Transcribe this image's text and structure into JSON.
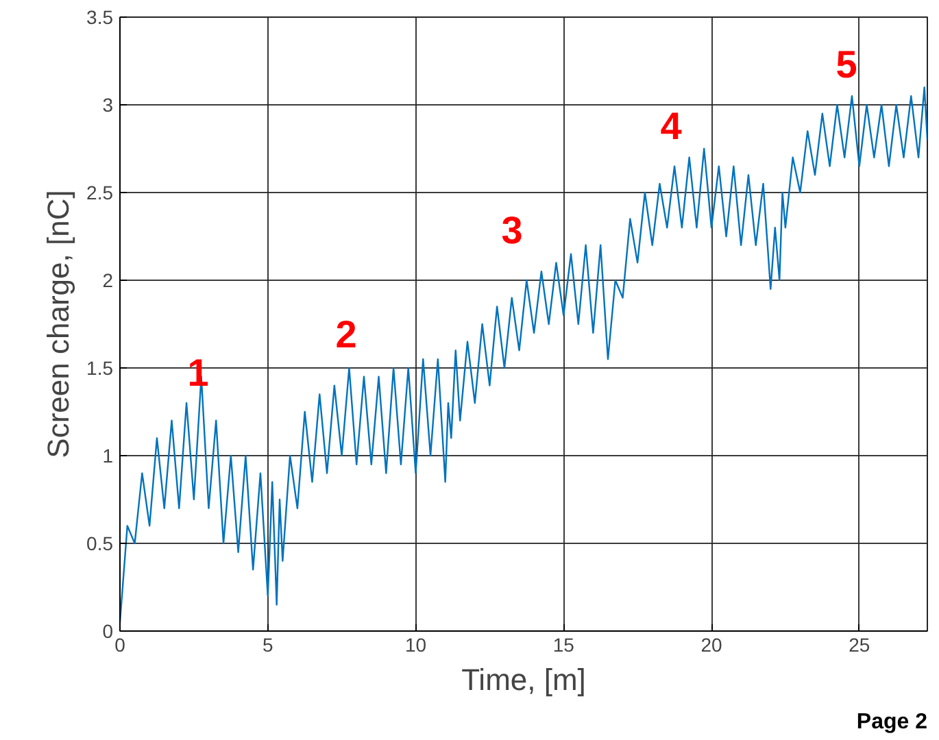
{
  "chart_data": {
    "type": "line",
    "xlabel": "Time, [m]",
    "ylabel": "Screen charge, [nC]",
    "xlim": [
      0,
      27.3
    ],
    "ylim": [
      0,
      3.5
    ],
    "xticks": [
      0,
      5,
      10,
      15,
      20,
      25
    ],
    "yticks": [
      0,
      0.5,
      1,
      1.5,
      2,
      2.5,
      3,
      3.5
    ],
    "grid": true,
    "series": [
      {
        "color": "#0072bd",
        "x": [
          0,
          0.25,
          0.5,
          0.75,
          1,
          1.25,
          1.5,
          1.75,
          2,
          2.25,
          2.5,
          2.75,
          3,
          3.25,
          3.5,
          3.75,
          4,
          4.25,
          4.5,
          4.75,
          5,
          5.15,
          5.3,
          5.4,
          5.5,
          5.75,
          6,
          6.25,
          6.5,
          6.75,
          7,
          7.25,
          7.5,
          7.75,
          8,
          8.25,
          8.5,
          8.75,
          9,
          9.25,
          9.5,
          9.75,
          10,
          10.25,
          10.5,
          10.75,
          11,
          11.1,
          11.2,
          11.35,
          11.5,
          11.75,
          12,
          12.25,
          12.5,
          12.75,
          13,
          13.25,
          13.5,
          13.75,
          14,
          14.25,
          14.5,
          14.75,
          15,
          15.25,
          15.5,
          15.75,
          16,
          16.25,
          16.5,
          16.75,
          17,
          17.25,
          17.5,
          17.75,
          18,
          18.25,
          18.5,
          18.75,
          19,
          19.25,
          19.5,
          19.75,
          20,
          20.25,
          20.5,
          20.75,
          21,
          21.25,
          21.5,
          21.75,
          22,
          22.15,
          22.3,
          22.4,
          22.5,
          22.75,
          23,
          23.25,
          23.5,
          23.75,
          24,
          24.25,
          24.5,
          24.75,
          25,
          25.25,
          25.5,
          25.75,
          26,
          26.25,
          26.5,
          26.75,
          27,
          27.2,
          27.3
        ],
        "values": [
          0.05,
          0.6,
          0.5,
          0.9,
          0.6,
          1.1,
          0.7,
          1.2,
          0.7,
          1.3,
          0.75,
          1.45,
          0.7,
          1.2,
          0.5,
          1.0,
          0.45,
          1.0,
          0.35,
          0.9,
          0.2,
          0.85,
          0.15,
          0.75,
          0.4,
          1.0,
          0.7,
          1.25,
          0.85,
          1.35,
          0.9,
          1.4,
          1.0,
          1.5,
          0.95,
          1.45,
          0.95,
          1.45,
          0.9,
          1.5,
          0.95,
          1.5,
          0.9,
          1.55,
          1.0,
          1.55,
          0.85,
          1.3,
          1.1,
          1.6,
          1.2,
          1.65,
          1.3,
          1.75,
          1.4,
          1.85,
          1.5,
          1.9,
          1.6,
          2.0,
          1.7,
          2.05,
          1.75,
          2.1,
          1.8,
          2.15,
          1.75,
          2.2,
          1.7,
          2.2,
          1.55,
          2.0,
          1.9,
          2.35,
          2.1,
          2.5,
          2.2,
          2.55,
          2.3,
          2.65,
          2.3,
          2.7,
          2.3,
          2.75,
          2.3,
          2.65,
          2.25,
          2.65,
          2.2,
          2.6,
          2.2,
          2.55,
          1.95,
          2.3,
          2.0,
          2.5,
          2.3,
          2.7,
          2.5,
          2.85,
          2.6,
          2.95,
          2.65,
          3.0,
          2.7,
          3.05,
          2.65,
          3.0,
          2.7,
          3.0,
          2.65,
          3.0,
          2.7,
          3.05,
          2.7,
          3.1,
          2.8
        ]
      }
    ],
    "annotations": [
      "1",
      "2",
      "3",
      "4",
      "5",
      "Page 2"
    ]
  }
}
